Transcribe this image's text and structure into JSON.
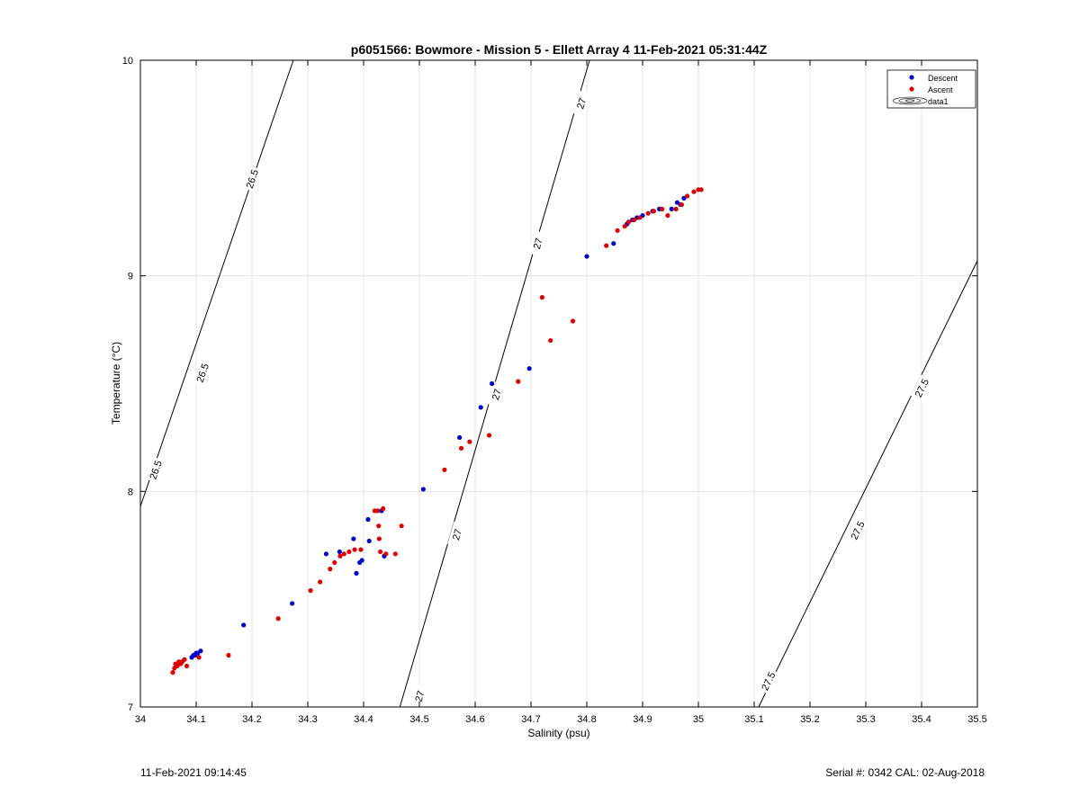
{
  "chart_data": {
    "type": "scatter",
    "title": "p6051566: Bowmore - Mission 5 - Ellett Array 4 11-Feb-2021 05:31:44Z",
    "xlabel": "Salinity (psu)",
    "ylabel": "Temperature (°C)",
    "xlim": [
      34,
      35.5
    ],
    "ylim": [
      7,
      10
    ],
    "x_ticks": [
      "34",
      "34.1",
      "34.2",
      "34.3",
      "34.4",
      "34.5",
      "34.6",
      "34.7",
      "34.8",
      "34.9",
      "35",
      "35.1",
      "35.2",
      "35.3",
      "35.4",
      "35.5"
    ],
    "y_ticks": [
      "7",
      "8",
      "9",
      "10"
    ],
    "grid": true,
    "legend_position": "top-right",
    "legend": [
      "Descent",
      "Ascent",
      "data1"
    ],
    "colors": {
      "Descent": "#0000cc",
      "Ascent": "#dd0000",
      "contour": "#000000"
    },
    "series": [
      {
        "name": "Descent",
        "points": [
          [
            34.092,
            7.23
          ],
          [
            34.095,
            7.24
          ],
          [
            34.098,
            7.24
          ],
          [
            34.1,
            7.25
          ],
          [
            34.103,
            7.25
          ],
          [
            34.108,
            7.26
          ],
          [
            34.185,
            7.38
          ],
          [
            34.272,
            7.48
          ],
          [
            34.333,
            7.71
          ],
          [
            34.357,
            7.72
          ],
          [
            34.382,
            7.78
          ],
          [
            34.387,
            7.62
          ],
          [
            34.393,
            7.67
          ],
          [
            34.397,
            7.68
          ],
          [
            34.408,
            7.87
          ],
          [
            34.41,
            7.77
          ],
          [
            34.432,
            7.91
          ],
          [
            34.437,
            7.7
          ],
          [
            34.507,
            8.01
          ],
          [
            34.572,
            8.25
          ],
          [
            34.61,
            8.39
          ],
          [
            34.63,
            8.5
          ],
          [
            34.697,
            8.57
          ],
          [
            34.8,
            9.09
          ],
          [
            34.848,
            9.15
          ],
          [
            34.872,
            9.24
          ],
          [
            34.882,
            9.26
          ],
          [
            34.89,
            9.27
          ],
          [
            34.9,
            9.28
          ],
          [
            34.918,
            9.3
          ],
          [
            34.93,
            9.31
          ],
          [
            34.952,
            9.31
          ],
          [
            34.962,
            9.34
          ],
          [
            34.968,
            9.33
          ],
          [
            34.974,
            9.36
          ]
        ]
      },
      {
        "name": "Ascent",
        "points": [
          [
            34.058,
            7.16
          ],
          [
            34.061,
            7.18
          ],
          [
            34.063,
            7.2
          ],
          [
            34.066,
            7.19
          ],
          [
            34.069,
            7.21
          ],
          [
            34.072,
            7.2
          ],
          [
            34.075,
            7.21
          ],
          [
            34.079,
            7.22
          ],
          [
            34.083,
            7.19
          ],
          [
            34.105,
            7.23
          ],
          [
            34.158,
            7.24
          ],
          [
            34.247,
            7.41
          ],
          [
            34.305,
            7.54
          ],
          [
            34.322,
            7.58
          ],
          [
            34.34,
            7.64
          ],
          [
            34.348,
            7.67
          ],
          [
            34.358,
            7.7
          ],
          [
            34.365,
            7.71
          ],
          [
            34.374,
            7.72
          ],
          [
            34.384,
            7.73
          ],
          [
            34.395,
            7.73
          ],
          [
            34.42,
            7.91
          ],
          [
            34.427,
            7.84
          ],
          [
            34.428,
            7.78
          ],
          [
            34.43,
            7.72
          ],
          [
            34.44,
            7.71
          ],
          [
            34.457,
            7.71
          ],
          [
            34.468,
            7.84
          ],
          [
            34.425,
            7.91
          ],
          [
            34.435,
            7.92
          ],
          [
            34.545,
            8.1
          ],
          [
            34.575,
            8.2
          ],
          [
            34.59,
            8.23
          ],
          [
            34.625,
            8.26
          ],
          [
            34.677,
            8.51
          ],
          [
            34.72,
            8.9
          ],
          [
            34.735,
            8.7
          ],
          [
            34.775,
            8.79
          ],
          [
            34.835,
            9.14
          ],
          [
            34.855,
            9.21
          ],
          [
            34.868,
            9.23
          ],
          [
            34.875,
            9.25
          ],
          [
            34.885,
            9.26
          ],
          [
            34.895,
            9.27
          ],
          [
            34.91,
            9.29
          ],
          [
            34.92,
            9.3
          ],
          [
            34.935,
            9.31
          ],
          [
            34.945,
            9.28
          ],
          [
            34.96,
            9.31
          ],
          [
            34.97,
            9.33
          ],
          [
            34.98,
            9.37
          ],
          [
            34.992,
            9.39
          ],
          [
            35.0,
            9.4
          ],
          [
            35.005,
            9.4
          ]
        ]
      },
      {
        "name": "data1",
        "type": "contour",
        "lines": [
          {
            "level": "26.5",
            "from": [
              34.0,
              7.93
            ],
            "to": [
              34.274,
              10.0
            ],
            "labels": [
              [
                34.027,
                8.1
              ],
              [
                34.111,
                8.55
              ],
              [
                34.2,
                9.45
              ]
            ]
          },
          {
            "level": "27",
            "from": [
              34.465,
              7.0
            ],
            "to": [
              34.805,
              10.0
            ],
            "labels": [
              [
                34.5,
                7.05
              ],
              [
                34.567,
                7.8
              ],
              [
                34.638,
                8.45
              ],
              [
                34.712,
                9.15
              ],
              [
                34.79,
                9.8
              ]
            ]
          },
          {
            "level": "27.5",
            "from": [
              35.108,
              7.0
            ],
            "to": [
              35.5,
              9.07
            ],
            "labels": [
              [
                35.125,
                7.12
              ],
              [
                35.285,
                7.82
              ],
              [
                35.4,
                8.48
              ]
            ]
          }
        ]
      }
    ]
  },
  "footer": {
    "left": "11-Feb-2021 09:14:45",
    "right": "Serial #: 0342  CAL: 02-Aug-2018"
  }
}
